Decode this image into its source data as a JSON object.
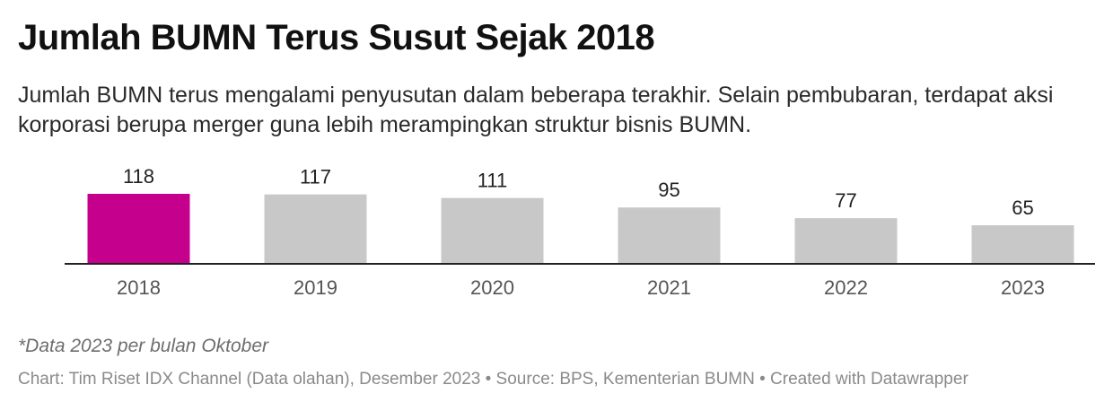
{
  "title": "Jumlah BUMN Terus Susut Sejak 2018",
  "subtitle": "Jumlah BUMN terus mengalami penyusutan dalam beberapa terakhir. Selain pembubaran, terdapat aksi korporasi berupa merger guna lebih merampingkan struktur bisnis BUMN.",
  "note": "*Data 2023 per bulan Oktober",
  "source_line": "Chart: Tim Riset IDX Channel (Data olahan), Desember 2023 • Source: BPS, Kementerian BUMN • Created with Datawrapper",
  "colors": {
    "highlight": "#c5008c",
    "bar": "#c8c8c8",
    "baseline": "#222222",
    "value_label": "#222222",
    "tick_label": "#555555"
  },
  "chart_data": {
    "type": "bar",
    "categories": [
      "2018",
      "2019",
      "2020",
      "2021",
      "2022",
      "2023"
    ],
    "values": [
      118,
      117,
      111,
      95,
      77,
      65
    ],
    "highlight_index": 0,
    "ylim": [
      0,
      118
    ]
  }
}
